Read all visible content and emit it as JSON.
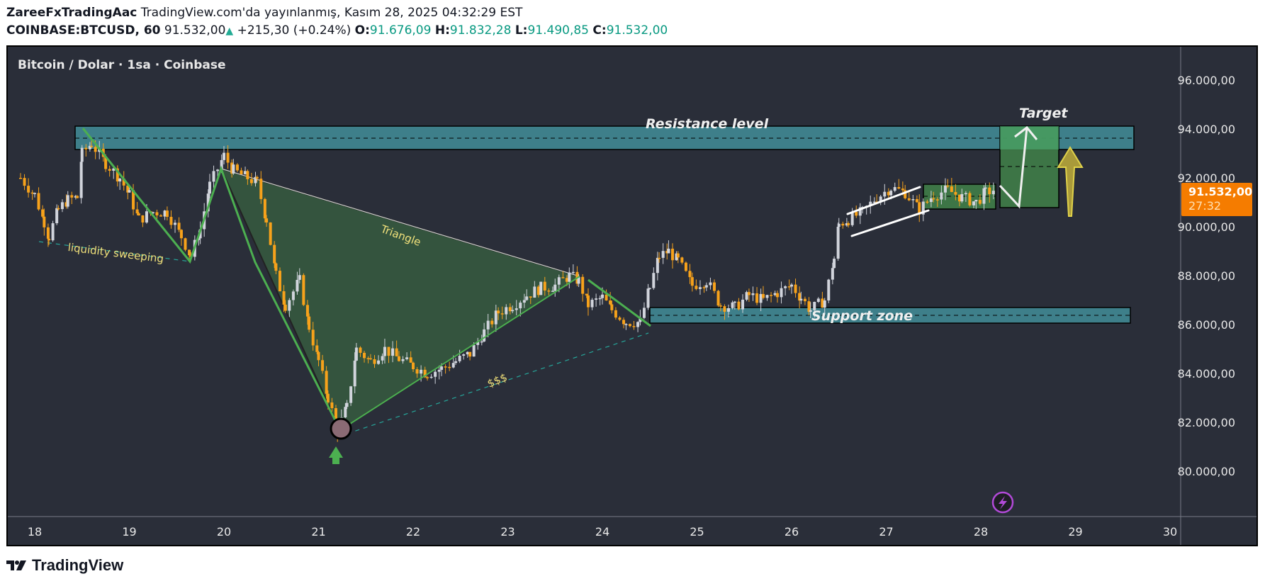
{
  "header": {
    "author": "ZareeFxTradingAac",
    "published": "TradingView.com'da yayınlanmış, Kasım 28, 2025 04:32:29 EST",
    "symbol": "COINBASE:BTCUSD, 60",
    "last": "91.532,00",
    "change": "+215,30 (+0.24%)",
    "o_label": "O:",
    "o": "91.676,09",
    "h_label": "H:",
    "h": "91.832,28",
    "l_label": "L:",
    "l": "91.490,85",
    "c_label": "C:",
    "c": "91.532,00"
  },
  "chart": {
    "title": "Bitcoin / Dolar · 1sa · Coinbase",
    "last_price_label": "91.532,00",
    "countdown": "27:32",
    "colors": {
      "background": "#2a2e39",
      "up_candle": "#d1d4dc",
      "down_candle": "#f7a21b",
      "zone": "#3e7f8a",
      "accent_last_price": "#f57c00",
      "triangle_fill": "#35593f",
      "green_line": "#4caf50"
    },
    "annotations": {
      "resistance": "Resistance level",
      "support": "Support zone",
      "target": "Target",
      "triangle": "Triangle",
      "liquidity": "liquidity sweeping",
      "dollars": "$$$"
    },
    "footer_brand": "TradingView"
  },
  "chart_data": {
    "type": "candlestick",
    "title": "Bitcoin / Dolar · 1sa · Coinbase",
    "symbol": "COINBASE:BTCUSD",
    "interval": "60",
    "x_ticks": [
      "18",
      "19",
      "20",
      "21",
      "22",
      "23",
      "24",
      "25",
      "26",
      "27",
      "28",
      "29",
      "30"
    ],
    "y_ticks": [
      "96.000,00",
      "94.000,00",
      "92.000,00",
      "90.000,00",
      "88.000,00",
      "86.000,00",
      "84.000,00",
      "82.000,00",
      "80.000,00"
    ],
    "ylim": [
      78000,
      97500
    ],
    "last_price": 91532.0,
    "ohlc_last": {
      "open": 91676.09,
      "high": 91832.28,
      "low": 91490.85,
      "close": 91532.0
    },
    "close_path": [
      [
        17.85,
        92000
      ],
      [
        18.0,
        91300
      ],
      [
        18.1,
        90200
      ],
      [
        18.15,
        89600
      ],
      [
        18.25,
        90700
      ],
      [
        18.35,
        91100
      ],
      [
        18.45,
        91200
      ],
      [
        18.5,
        93000
      ],
      [
        18.6,
        93400
      ],
      [
        18.75,
        92600
      ],
      [
        18.9,
        92000
      ],
      [
        19.0,
        91300
      ],
      [
        19.1,
        90300
      ],
      [
        19.25,
        90600
      ],
      [
        19.4,
        90600
      ],
      [
        19.55,
        89600
      ],
      [
        19.65,
        88800
      ],
      [
        19.75,
        89900
      ],
      [
        19.85,
        91700
      ],
      [
        20.0,
        92900
      ],
      [
        20.1,
        92300
      ],
      [
        20.25,
        92000
      ],
      [
        20.35,
        91800
      ],
      [
        20.45,
        90300
      ],
      [
        20.55,
        88000
      ],
      [
        20.65,
        86800
      ],
      [
        20.8,
        87800
      ],
      [
        20.9,
        85900
      ],
      [
        21.0,
        84500
      ],
      [
        21.1,
        83000
      ],
      [
        21.2,
        81700
      ],
      [
        21.3,
        82600
      ],
      [
        21.4,
        85000
      ],
      [
        21.55,
        84500
      ],
      [
        21.7,
        85000
      ],
      [
        21.85,
        84600
      ],
      [
        22.0,
        84300
      ],
      [
        22.15,
        84000
      ],
      [
        22.3,
        84200
      ],
      [
        22.45,
        84500
      ],
      [
        22.6,
        84800
      ],
      [
        22.75,
        85700
      ],
      [
        22.9,
        86500
      ],
      [
        23.05,
        86800
      ],
      [
        23.2,
        87200
      ],
      [
        23.35,
        87500
      ],
      [
        23.5,
        87600
      ],
      [
        23.65,
        88000
      ],
      [
        23.75,
        87800
      ],
      [
        23.85,
        86800
      ],
      [
        24.0,
        87100
      ],
      [
        24.1,
        86600
      ],
      [
        24.25,
        86100
      ],
      [
        24.4,
        86100
      ],
      [
        24.5,
        87500
      ],
      [
        24.6,
        88800
      ],
      [
        24.7,
        89000
      ],
      [
        24.8,
        88600
      ],
      [
        24.95,
        87600
      ],
      [
        25.1,
        87800
      ],
      [
        25.25,
        86800
      ],
      [
        25.4,
        86700
      ],
      [
        25.55,
        87200
      ],
      [
        25.7,
        87000
      ],
      [
        25.85,
        87300
      ],
      [
        26.0,
        87600
      ],
      [
        26.1,
        87100
      ],
      [
        26.2,
        86600
      ],
      [
        26.35,
        87000
      ],
      [
        26.45,
        88700
      ],
      [
        26.5,
        90100
      ],
      [
        26.6,
        90300
      ],
      [
        26.75,
        90600
      ],
      [
        26.9,
        91200
      ],
      [
        27.05,
        91600
      ],
      [
        27.2,
        91400
      ],
      [
        27.35,
        90700
      ],
      [
        27.5,
        91300
      ],
      [
        27.65,
        91500
      ],
      [
        27.8,
        91200
      ],
      [
        27.95,
        91000
      ],
      [
        28.05,
        91400
      ],
      [
        28.15,
        91532
      ]
    ],
    "zones": [
      {
        "label": "Resistance level",
        "from": 93200,
        "to": 94100
      },
      {
        "label": "Support zone",
        "from": 86100,
        "to": 86700
      }
    ],
    "legend": "none",
    "grid": false
  }
}
